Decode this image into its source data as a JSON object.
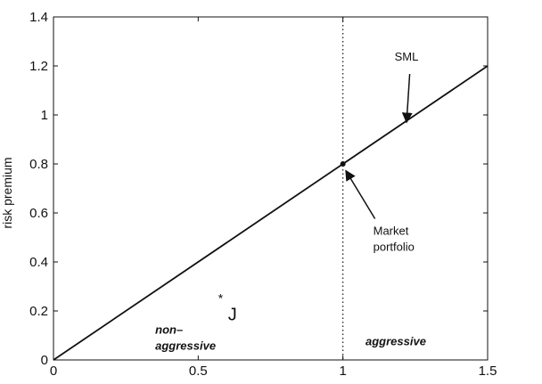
{
  "chart_data": {
    "type": "line",
    "title": "",
    "xlabel": "",
    "ylabel": "risk premium",
    "xlim": [
      0,
      1.5
    ],
    "ylim": [
      0,
      1.4
    ],
    "x_ticks": [
      0,
      0.5,
      1,
      1.5
    ],
    "x_tick_labels": [
      "0",
      "0.5",
      "1",
      "1.5"
    ],
    "y_ticks": [
      0,
      0.2,
      0.4,
      0.6,
      0.8,
      1,
      1.2,
      1.4
    ],
    "y_tick_labels": [
      "0",
      "0.2",
      "0.4",
      "0.6",
      "0.8",
      "1",
      "1.2",
      "1.4"
    ],
    "grid": false,
    "series": [
      {
        "name": "SML",
        "x": [
          0,
          1.5
        ],
        "y": [
          0,
          1.2
        ]
      }
    ],
    "market_portfolio": {
      "x": 1,
      "y": 0.8
    },
    "vertical_reference": {
      "x": 1,
      "style": "dotted"
    },
    "point_J": {
      "label": "J",
      "marker": "*",
      "x": 0.6,
      "y": 0.25
    },
    "annotations": {
      "sml": {
        "text": "SML",
        "x": 1.24,
        "y": 1.24,
        "arrow_to": [
          1.22,
          0.97
        ]
      },
      "market": {
        "lines": [
          "Market",
          "portfolio"
        ],
        "x": 1.12,
        "y": 0.46,
        "arrow_to": [
          1.01,
          0.78
        ]
      }
    },
    "regions": {
      "left": {
        "lines": [
          "non–",
          "aggressive"
        ],
        "x": 0.33,
        "y": 0.05
      },
      "right": {
        "text": "aggressive",
        "x": 1.075,
        "y": 0.05
      }
    }
  }
}
